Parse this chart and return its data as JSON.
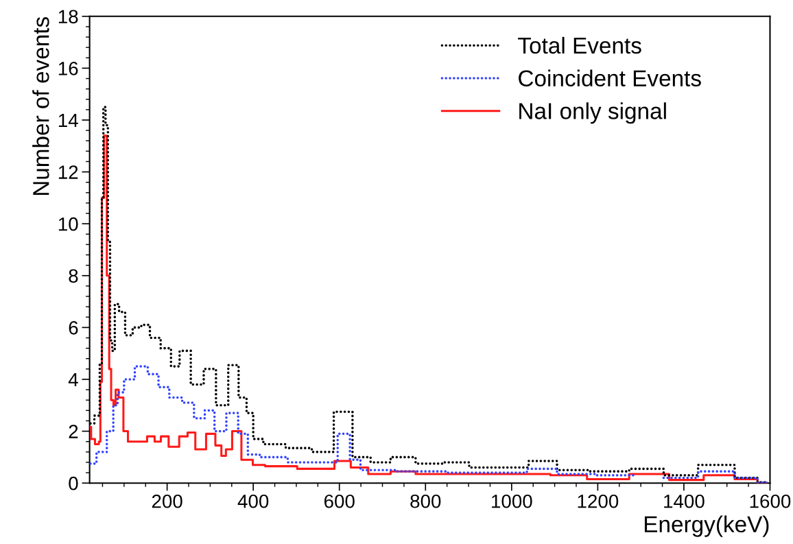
{
  "chart_data": {
    "type": "step",
    "xlabel": "Energy(keV)",
    "ylabel": "Number of events",
    "xlim": [
      20,
      1600
    ],
    "xticks": [
      200,
      400,
      600,
      800,
      1000,
      1200,
      1400,
      1600
    ],
    "ylim": [
      0,
      18
    ],
    "yticks": [
      0,
      2,
      4,
      6,
      8,
      10,
      12,
      14,
      16,
      18
    ],
    "legend": "top right",
    "grid": false,
    "series": [
      {
        "name": "Total Events",
        "color": "#000000",
        "line_style": "dotted",
        "x": [
          22,
          40,
          47,
          50,
          54,
          60,
          65,
          70,
          75,
          82,
          95,
          110,
          130,
          150,
          170,
          200,
          218,
          240,
          270,
          300,
          327,
          357,
          375,
          394,
          406,
          441,
          510,
          562,
          612,
          649,
          696,
          742,
          812,
          875,
          928,
          1008,
          1071,
          1140,
          1220,
          1326,
          1380,
          1486,
          1550,
          1592
        ],
        "values": [
          2.3,
          2.6,
          4.6,
          11,
          14.5,
          13.8,
          9.3,
          5.5,
          5.1,
          6.9,
          6.6,
          5.7,
          6.0,
          6.1,
          5.6,
          5.2,
          4.5,
          5.1,
          3.8,
          4.4,
          3.0,
          4.55,
          3.3,
          2.7,
          1.7,
          1.5,
          1.35,
          1.2,
          2.75,
          1.0,
          0.8,
          1.0,
          0.75,
          0.8,
          0.6,
          0.6,
          0.85,
          0.5,
          0.45,
          0.55,
          0.3,
          0.7,
          0.2,
          0.03
        ]
      },
      {
        "name": "Coincident Events",
        "color": "#3344ff",
        "line_style": "dotted",
        "x": [
          22,
          50,
          70,
          80,
          90,
          110,
          140,
          170,
          190,
          220,
          250,
          275,
          300,
          320,
          355,
          375,
          400,
          430,
          530,
          580,
          612,
          637,
          661,
          800,
          900,
          1000,
          1071,
          1140,
          1250,
          1326,
          1380,
          1486,
          1550,
          1592
        ],
        "values": [
          0.75,
          1.2,
          2.0,
          3.0,
          3.5,
          4.0,
          4.5,
          4.2,
          3.7,
          3.3,
          3.1,
          2.5,
          2.8,
          2.0,
          2.7,
          1.9,
          1.1,
          1.0,
          0.8,
          0.8,
          1.9,
          0.9,
          0.5,
          0.45,
          0.4,
          0.4,
          0.55,
          0.35,
          0.3,
          null,
          0.2,
          0.45,
          0.2,
          0.02
        ]
      },
      {
        "name": "NaI only signal",
        "color": "#ff1a1a",
        "line_style": "solid",
        "x": [
          22,
          25,
          40,
          43,
          47,
          50,
          57,
          63,
          68,
          72,
          79,
          82,
          93,
          104,
          114,
          143,
          164,
          178,
          193,
          214,
          242,
          253,
          278,
          303,
          321,
          331,
          342,
          360,
          385,
          413,
          442,
          562,
          615,
          638,
          696,
          742,
          812,
          900,
          1050,
          1130,
          1220,
          1326,
          1406,
          1486,
          1550,
          1592
        ],
        "values": [
          2.17,
          1.7,
          1.5,
          1.6,
          3.9,
          11,
          13.4,
          8,
          4.4,
          3.2,
          3.0,
          3.6,
          3.3,
          2.0,
          1.6,
          1.6,
          1.8,
          1.6,
          1.8,
          1.4,
          1.8,
          1.95,
          1.3,
          1.9,
          1.45,
          1.05,
          1.3,
          2.0,
          0.9,
          0.7,
          0.65,
          0.55,
          0.85,
          0.6,
          0.35,
          0.45,
          0.35,
          0.35,
          0.35,
          0.3,
          0.15,
          0.35,
          0.12,
          0.3,
          0.15,
          0.02
        ]
      }
    ]
  }
}
